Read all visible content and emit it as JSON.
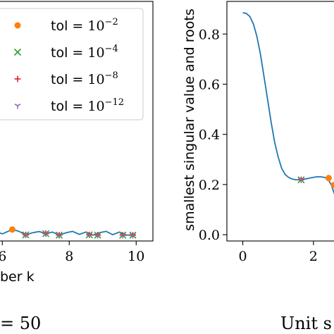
{
  "chart_data": [
    {
      "type": "line",
      "xlabel": "ber k",
      "ylabel": "",
      "x_ticks": [
        "6",
        "8",
        "10"
      ],
      "x_tick_values": [
        6,
        8,
        10
      ],
      "xlim": [
        5.3,
        10.5
      ],
      "ylim": [
        -0.02,
        0.92
      ],
      "grid": false,
      "legend": {
        "placement": "top-left",
        "entries": [
          {
            "name_prefix": "tol",
            "eq": "=",
            "mantissa": "10",
            "exponent": "−2",
            "marker": "dot",
            "color": "#ff7f0e"
          },
          {
            "name_prefix": "tol",
            "eq": "=",
            "mantissa": "10",
            "exponent": "−4",
            "marker": "x",
            "color": "#2ca02c"
          },
          {
            "name_prefix": "tol",
            "eq": "=",
            "mantissa": "10",
            "exponent": "−8",
            "marker": "plus",
            "color": "#d62728"
          },
          {
            "name_prefix": "tol",
            "eq": "=",
            "mantissa": "10",
            "exponent": "−12",
            "marker": "tri",
            "color": "#9467bd"
          }
        ]
      },
      "series": [
        {
          "color": "#1f77b4",
          "x": [
            5.3,
            5.6,
            5.8,
            6.0,
            6.3,
            6.5,
            6.7,
            6.9,
            7.1,
            7.3,
            7.5,
            7.7,
            7.9,
            8.1,
            8.3,
            8.5,
            8.7,
            8.9,
            9.1,
            9.3,
            9.5,
            9.7,
            9.9
          ],
          "y": [
            0.003,
            0.004,
            0.018,
            0.008,
            0.025,
            0.018,
            0.004,
            0.012,
            0.017,
            0.009,
            0.015,
            0.003,
            0.012,
            0.018,
            0.006,
            0.015,
            0.003,
            0.012,
            0.018,
            0.005,
            0.015,
            0.003,
            0.003
          ]
        }
      ],
      "markers": {
        "tol_1e-2": {
          "x": [
            6.3
          ],
          "y": [
            0.025
          ]
        },
        "tol_1e-4": {
          "x": [
            5.6,
            6.7,
            7.3,
            7.7,
            8.6,
            8.85,
            9.6,
            9.9
          ],
          "y": [
            0.003,
            0.004,
            0.009,
            0.003,
            0.004,
            0.003,
            0.003,
            0.003
          ]
        },
        "tol_1e-8": {
          "x": [
            5.6,
            6.7,
            7.3,
            7.7,
            8.6,
            8.85,
            9.6,
            9.9
          ],
          "y": [
            0.003,
            0.004,
            0.009,
            0.003,
            0.004,
            0.003,
            0.003,
            0.003
          ]
        },
        "tol_1e-12": {
          "x": [
            5.6,
            6.7,
            7.3,
            7.7,
            8.6,
            8.85,
            9.6,
            9.9
          ],
          "y": [
            0.003,
            0.004,
            0.009,
            0.003,
            0.004,
            0.003,
            0.003,
            0.003
          ]
        }
      },
      "caption_fragment": "= 50"
    },
    {
      "type": "line",
      "xlabel": "",
      "ylabel": "smallest singular value and roots",
      "x_ticks": [
        "0",
        "2"
      ],
      "x_tick_values": [
        0,
        2
      ],
      "y_ticks": [
        "0.0",
        "0.2",
        "0.4",
        "0.6",
        "0.8"
      ],
      "y_tick_values": [
        0.0,
        0.2,
        0.4,
        0.6,
        0.8
      ],
      "xlim": [
        -0.45,
        3.0
      ],
      "ylim": [
        -0.025,
        0.93
      ],
      "grid": false,
      "series": [
        {
          "color": "#1f77b4",
          "x": [
            0.0,
            0.1,
            0.2,
            0.3,
            0.4,
            0.5,
            0.6,
            0.7,
            0.8,
            0.9,
            1.0,
            1.1,
            1.2,
            1.3,
            1.4,
            1.5,
            1.6,
            1.7,
            1.8,
            1.9,
            2.0,
            2.1,
            2.2,
            2.3,
            2.4,
            2.5,
            2.6,
            2.7,
            2.8,
            2.9,
            3.0
          ],
          "y": [
            0.885,
            0.882,
            0.87,
            0.84,
            0.79,
            0.72,
            0.63,
            0.54,
            0.45,
            0.37,
            0.31,
            0.265,
            0.24,
            0.228,
            0.222,
            0.219,
            0.219,
            0.221,
            0.223,
            0.226,
            0.229,
            0.231,
            0.231,
            0.229,
            0.224,
            0.2,
            0.16,
            0.1,
            0.05,
            0.01,
            -0.02
          ]
        }
      ],
      "markers": {
        "tol_1e-2": {
          "x": [
            2.43,
            2.58
          ],
          "y": [
            0.226,
            0.198
          ]
        },
        "tol_1e-4": {
          "x": [
            1.65
          ],
          "y": [
            0.219
          ]
        },
        "tol_1e-8": {
          "x": [
            1.65
          ],
          "y": [
            0.219
          ]
        },
        "tol_1e-12": {
          "x": [
            1.65
          ],
          "y": [
            0.219
          ]
        }
      },
      "caption_fragment": "Unit s"
    }
  ]
}
